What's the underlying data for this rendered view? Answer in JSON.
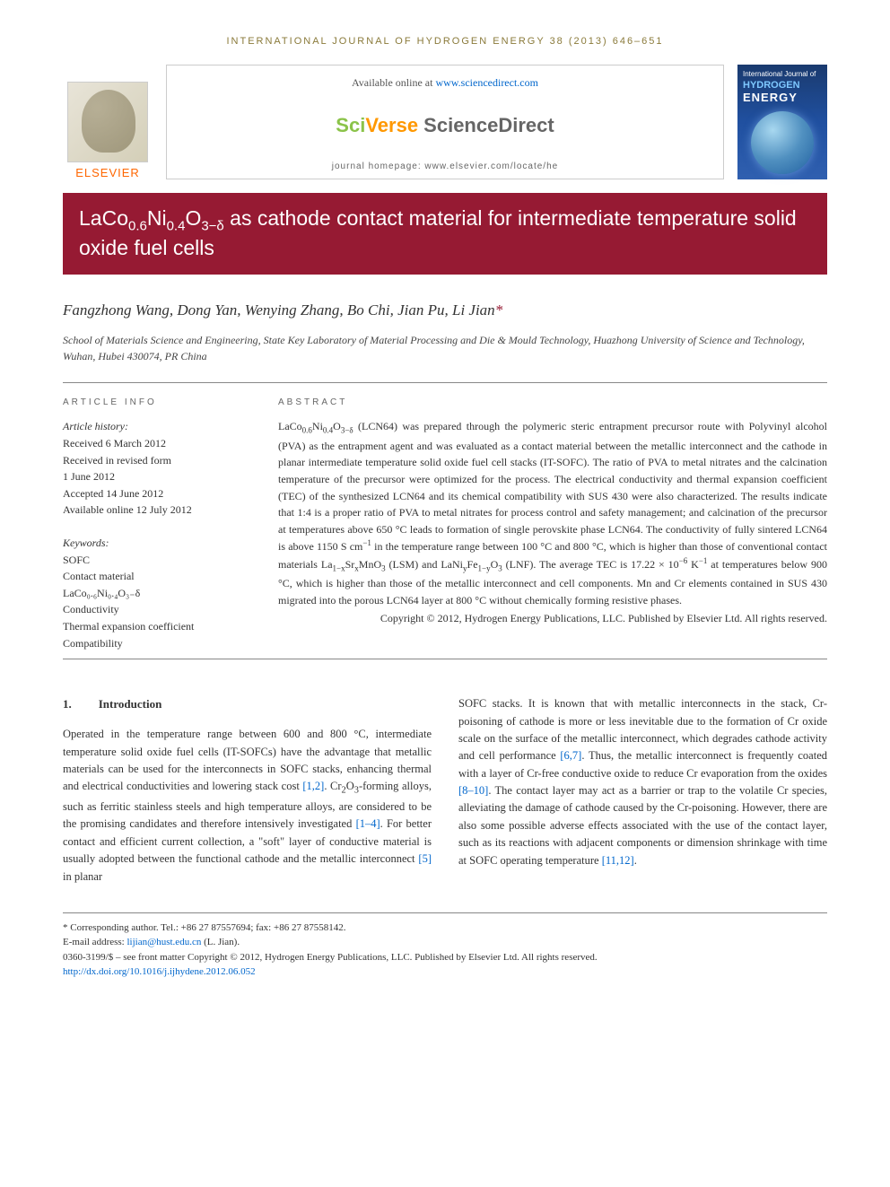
{
  "journal_header": "INTERNATIONAL JOURNAL OF HYDROGEN ENERGY 38 (2013) 646–651",
  "elsevier": "ELSEVIER",
  "available_text": "Available online at ",
  "available_url": "www.sciencedirect.com",
  "sciverse": {
    "sci": "Sci",
    "verse": "Verse ",
    "direct": "ScienceDirect"
  },
  "homepage": "journal homepage: www.elsevier.com/locate/he",
  "cover": {
    "top": "International Journal of",
    "hydrogen": "HYDROGEN",
    "energy": "ENERGY"
  },
  "title_html": "LaCo<sub>0.6</sub>Ni<sub>0.4</sub>O<sub>3−δ</sub> as cathode contact material for intermediate temperature solid oxide fuel cells",
  "authors_html": "Fangzhong Wang, Dong Yan, Wenying Zhang, Bo Chi, Jian Pu, Li Jian<span class=\"corr\">*</span>",
  "affiliation": "School of Materials Science and Engineering, State Key Laboratory of Material Processing and Die & Mould Technology, Huazhong University of Science and Technology, Wuhan, Hubei 430074, PR China",
  "article_info": {
    "heading": "ARTICLE INFO",
    "history_label": "Article history:",
    "history": [
      "Received 6 March 2012",
      "Received in revised form",
      "1 June 2012",
      "Accepted 14 June 2012",
      "Available online 12 July 2012"
    ],
    "kw_label": "Keywords:",
    "keywords": [
      "SOFC",
      "Contact material",
      "LaCo₀.₆Ni₀.₄O₃₋δ",
      "Conductivity",
      "Thermal expansion coefficient",
      "Compatibility"
    ]
  },
  "abstract": {
    "heading": "ABSTRACT",
    "text_html": "LaCo<sub>0.6</sub>Ni<sub>0.4</sub>O<sub>3−δ</sub> (LCN64) was prepared through the polymeric steric entrapment precursor route with Polyvinyl alcohol (PVA) as the entrapment agent and was evaluated as a contact material between the metallic interconnect and the cathode in planar intermediate temperature solid oxide fuel cell stacks (IT-SOFC). The ratio of PVA to metal nitrates and the calcination temperature of the precursor were optimized for the process. The electrical conductivity and thermal expansion coefficient (TEC) of the synthesized LCN64 and its chemical compatibility with SUS 430 were also characterized. The results indicate that 1:4 is a proper ratio of PVA to metal nitrates for process control and safety management; and calcination of the precursor at temperatures above 650 °C leads to formation of single perovskite phase LCN64. The conductivity of fully sintered LCN64 is above 1150 S cm<sup>−1</sup> in the temperature range between 100 °C and 800 °C, which is higher than those of conventional contact materials La<sub>1−x</sub>Sr<sub>x</sub>MnO<sub>3</sub> (LSM) and LaNi<sub>y</sub>Fe<sub>1−y</sub>O<sub>3</sub> (LNF). The average TEC is 17.22 × 10<sup>−6</sup> K<sup>−1</sup> at temperatures below 900 °C, which is higher than those of the metallic interconnect and cell components. Mn and Cr elements contained in SUS 430 migrated into the porous LCN64 layer at 800 °C without chemically forming resistive phases.",
    "copyright": "Copyright © 2012, Hydrogen Energy Publications, LLC. Published by Elsevier Ltd. All rights reserved."
  },
  "section1": {
    "num": "1.",
    "title": "Introduction",
    "col1_html": "Operated in the temperature range between 600 and 800 °C, intermediate temperature solid oxide fuel cells (IT-SOFCs) have the advantage that metallic materials can be used for the interconnects in SOFC stacks, enhancing thermal and electrical conductivities and lowering stack cost <span class=\"ref-link\">[1,2]</span>. Cr<sub>2</sub>O<sub>3</sub>-forming alloys, such as ferritic stainless steels and high temperature alloys, are considered to be the promising candidates and therefore intensively investigated <span class=\"ref-link\">[1–4]</span>. For better contact and efficient current collection, a \"soft\" layer of conductive material is usually adopted between the functional cathode and the metallic interconnect <span class=\"ref-link\">[5]</span> in planar",
    "col2_html": "SOFC stacks. It is known that with metallic interconnects in the stack, Cr-poisoning of cathode is more or less inevitable due to the formation of Cr oxide scale on the surface of the metallic interconnect, which degrades cathode activity and cell performance <span class=\"ref-link\">[6,7]</span>. Thus, the metallic interconnect is frequently coated with a layer of Cr-free conductive oxide to reduce Cr evaporation from the oxides <span class=\"ref-link\">[8–10]</span>. The contact layer may act as a barrier or trap to the volatile Cr species, alleviating the damage of cathode caused by the Cr-poisoning. However, there are also some possible adverse effects associated with the use of the contact layer, such as its reactions with adjacent components or dimension shrinkage with time at SOFC operating temperature <span class=\"ref-link\">[11,12]</span>."
  },
  "footnotes": {
    "corr": "* Corresponding author. Tel.: +86 27 87557694; fax: +86 27 87558142.",
    "email_label": "E-mail address: ",
    "email": "lijian@hust.edu.cn",
    "email_name": " (L. Jian).",
    "issn": "0360-3199/$ – see front matter Copyright © 2012, Hydrogen Energy Publications, LLC. Published by Elsevier Ltd. All rights reserved.",
    "doi": "http://dx.doi.org/10.1016/j.ijhydene.2012.06.052"
  },
  "colors": {
    "title_bar_bg": "#961a33",
    "elsevier_orange": "#ff6600",
    "link_blue": "#0066cc"
  }
}
